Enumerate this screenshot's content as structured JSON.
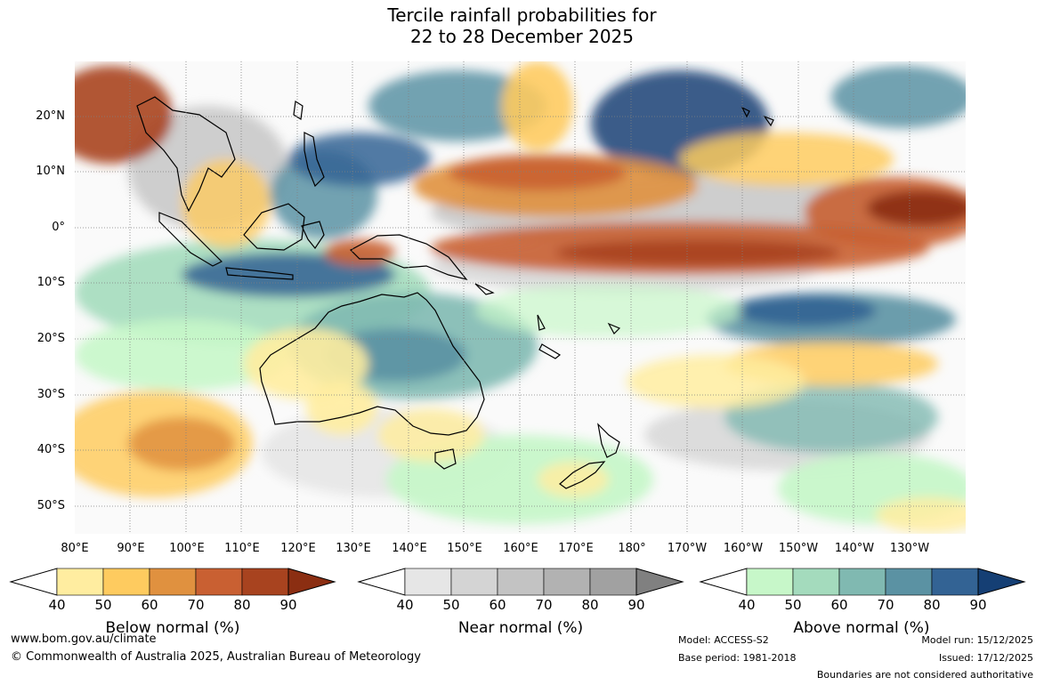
{
  "title": {
    "line1": "Tercile rainfall probabilities for",
    "line2": "22 to 28 December 2025"
  },
  "map": {
    "lat_labels": [
      "20°N",
      "10°N",
      "0°",
      "10°S",
      "20°S",
      "30°S",
      "40°S",
      "50°S"
    ],
    "lon_labels": [
      "80°E",
      "90°E",
      "100°E",
      "110°E",
      "120°E",
      "130°E",
      "140°E",
      "150°E",
      "160°E",
      "170°E",
      "180°",
      "170°W",
      "160°W",
      "150°W",
      "140°W",
      "130°W"
    ]
  },
  "colorbars": [
    {
      "name": "below",
      "label": "Below normal (%)",
      "ticks": [
        "40",
        "50",
        "60",
        "70",
        "80",
        "90"
      ],
      "colors": [
        "#ffeda0",
        "#fecb5f",
        "#e0913f",
        "#c96032",
        "#a8431f",
        "#8b2e12"
      ]
    },
    {
      "name": "near",
      "label": "Near normal (%)",
      "ticks": [
        "40",
        "50",
        "60",
        "70",
        "80",
        "90"
      ],
      "colors": [
        "#e6e6e6",
        "#d4d4d4",
        "#c3c3c3",
        "#b2b2b2",
        "#a1a1a1",
        "#808080"
      ]
    },
    {
      "name": "above",
      "label": "Above normal (%)",
      "ticks": [
        "40",
        "50",
        "60",
        "70",
        "80",
        "90"
      ],
      "colors": [
        "#c7f7c9",
        "#a4dbbd",
        "#80b9b1",
        "#5b92a3",
        "#336394",
        "#153f74"
      ]
    }
  ],
  "footer": {
    "url": "www.bom.gov.au/climate",
    "copyright": "© Commonwealth of Australia 2025, Australian Bureau of Meteorology",
    "model": "Model: ACCESS-S2",
    "base_period": "Base period: 1981-2018",
    "model_run": "Model run: 15/12/2025",
    "issued": "Issued: 17/12/2025",
    "disclaimer": "Boundaries are not considered authoritative"
  }
}
